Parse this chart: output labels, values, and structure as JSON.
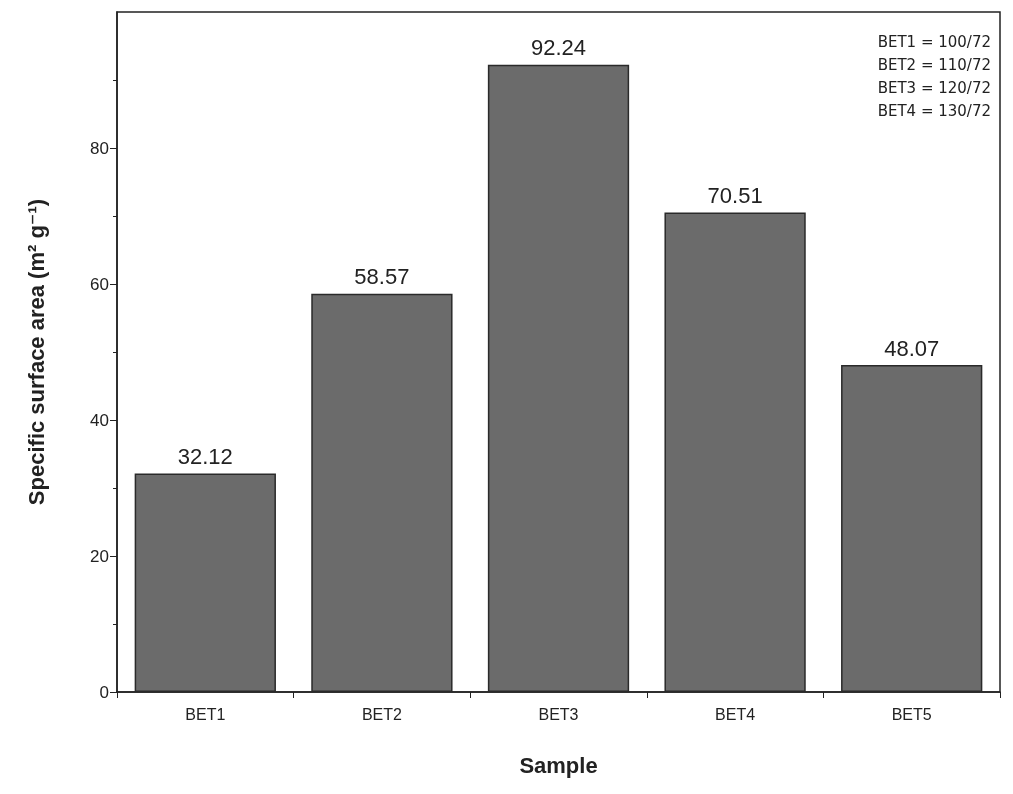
{
  "chart_data": {
    "type": "bar",
    "xlabel": "Sample",
    "ylabel": "Specific surface area (m² g⁻¹)",
    "categories": [
      "BET1",
      "BET2",
      "BET3",
      "BET4",
      "BET5"
    ],
    "values": [
      32.12,
      58.57,
      92.24,
      70.51,
      48.07
    ],
    "color": "#6b6b6b",
    "ylim": [
      0,
      100
    ],
    "yticks": [
      0,
      20,
      40,
      60,
      80
    ],
    "grid": false,
    "data_labels": true,
    "annotations": [
      "BET1 = 100/72",
      "BET2 = 110/72",
      "BET3 = 120/72",
      "BET4 = 130/72"
    ]
  }
}
